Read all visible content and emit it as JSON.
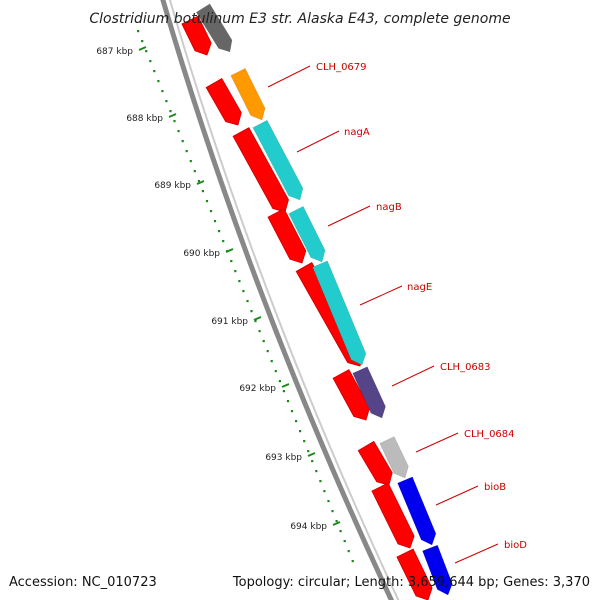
{
  "title": "Clostridium botulinum E3 str. Alaska E43, complete genome",
  "footer": {
    "accession": "Accession: NC_010723",
    "topology": "Topology: circular; Length: 3,659,644 bp; Genes: 3,370"
  },
  "colors": {
    "background": "#ffffff",
    "backbone": "#888888",
    "forward_cds": "#ff0000",
    "ruler_ticks": "#1a8a1a",
    "gene_label": "#cc0000"
  },
  "ruler_labels": [
    "687 kbp",
    "688 kbp",
    "689 kbp",
    "690 kbp",
    "691 kbp",
    "692 kbp",
    "693 kbp",
    "694 kbp"
  ],
  "genes": [
    {
      "name": "CLH_0679",
      "color": "#ff9900"
    },
    {
      "name": "nagA",
      "color": "#22cccc"
    },
    {
      "name": "nagB",
      "color": "#22cccc"
    },
    {
      "name": "nagE",
      "color": "#22cccc"
    },
    {
      "name": "CLH_0683",
      "color": "#554488"
    },
    {
      "name": "CLH_0684",
      "color": "#bbbbbb"
    },
    {
      "name": "bioB",
      "color": "#0000ee"
    },
    {
      "name": "bioD",
      "color": "#0000ee"
    }
  ]
}
